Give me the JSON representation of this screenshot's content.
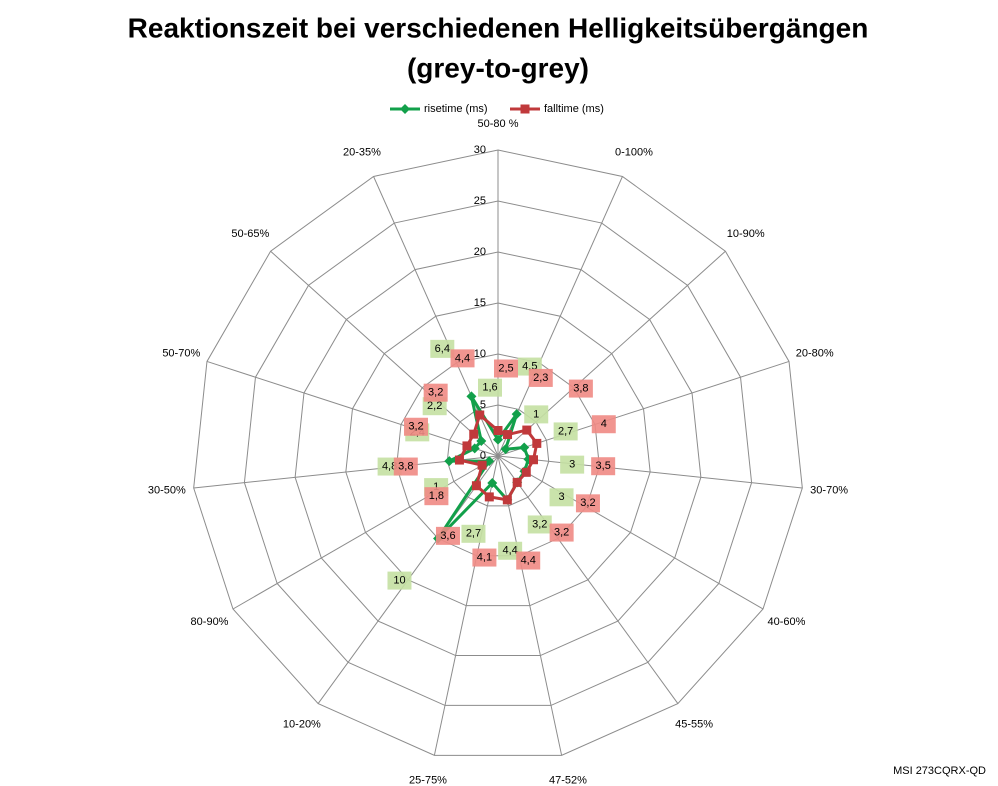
{
  "chart_data": {
    "type": "radar",
    "title_lines": [
      "Reaktionszeit bei verschiedenen Helligkeitsübergängen",
      "(grey-to-grey)"
    ],
    "annotation": "MSI 273CQRX-QD",
    "categories": [
      "50-80 %",
      "0-100%",
      "10-90%",
      "20-80%",
      "30-70%",
      "40-60%",
      "45-55%",
      "47-52%",
      "25-75%",
      "10-20%",
      "80-90%",
      "30-50%",
      "50-70%",
      "50-65%",
      "20-35%"
    ],
    "series": [
      {
        "name": "risetime (ms)",
        "color": "#12a04a",
        "label_bg": "#c4e0a2",
        "marker": "diamond",
        "values": [
          1.6,
          4.5,
          1,
          2.7,
          3,
          3,
          3.2,
          4.4,
          2.7,
          10,
          1,
          4.8,
          2.4,
          2.2,
          6.4
        ],
        "value_labels": [
          "1,6",
          "4,5",
          "1",
          "2,7",
          "3",
          "3",
          "3,2",
          "4,4",
          "2,7",
          "10",
          "1",
          "4,8",
          "2,4",
          "2,2",
          "6,4"
        ]
      },
      {
        "name": "falltime (ms)",
        "color": "#c0393b",
        "label_bg": "#f08a84",
        "marker": "square",
        "values": [
          2.5,
          2.3,
          3.8,
          4,
          3.5,
          3.2,
          3.2,
          4.4,
          4.1,
          3.6,
          1.8,
          3.8,
          3.2,
          3.2,
          4.4
        ],
        "value_labels": [
          "2,5",
          "2,3",
          "3,8",
          "4",
          "3,5",
          "3,2",
          "3,2",
          "4,4",
          "4,1",
          "3,6",
          "1,8",
          "3,8",
          "3,2",
          "3,2",
          "4,4"
        ]
      }
    ],
    "rlim": [
      0,
      30
    ],
    "rticks": [
      0,
      5,
      10,
      15,
      20,
      25,
      30
    ],
    "grid": true,
    "legend": "top"
  }
}
